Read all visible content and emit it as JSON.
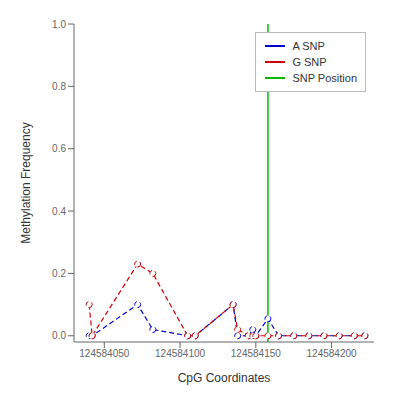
{
  "chart_data": {
    "type": "line",
    "x_label": "CpG Coordinates",
    "y_label": "Methylation Frequency",
    "x": [
      124584040,
      124584042,
      124584072,
      124584082,
      124584105,
      124584110,
      124584135,
      124584138,
      124584145,
      124584148,
      124584150,
      124584158,
      124584165,
      124584175,
      124584185,
      124584195,
      124584205,
      124584215,
      124584222
    ],
    "series": [
      {
        "name": "A SNP",
        "color": "#0000cc",
        "marker": "circle",
        "line_style": "dashed",
        "values": [
          0.0,
          0.0,
          0.1,
          0.02,
          0.0,
          0.0,
          0.1,
          0.0,
          0.0,
          0.02,
          0.0,
          0.055,
          0.0,
          0.0,
          0.0,
          0.0,
          0.0,
          0.0,
          0.0
        ]
      },
      {
        "name": "G SNP",
        "color": "#cc0000",
        "marker": "circle",
        "line_style": "dashed",
        "values": [
          0.1,
          0.0,
          0.23,
          0.2,
          0.0,
          0.0,
          0.1,
          0.02,
          0.0,
          0.0,
          0.0,
          0.0,
          0.0,
          0.0,
          0.0,
          0.0,
          0.0,
          0.0,
          0.0
        ]
      },
      {
        "name": "SNP Position",
        "type": "vline",
        "color": "#00bb00",
        "line_style": "solid",
        "x": 124584158
      }
    ],
    "xlim": [
      124584030,
      124584228
    ],
    "xticks": [
      124584050,
      124584100,
      124584150,
      124584200
    ],
    "ylim": [
      -0.02,
      1.0
    ],
    "yticks": [
      {
        "value": 0.0,
        "label": "0.0"
      },
      0.2,
      0.4,
      0.6,
      0.8,
      {
        "value": 1.0,
        "label": "1.0"
      }
    ],
    "grid": false,
    "legend": "upper right"
  }
}
